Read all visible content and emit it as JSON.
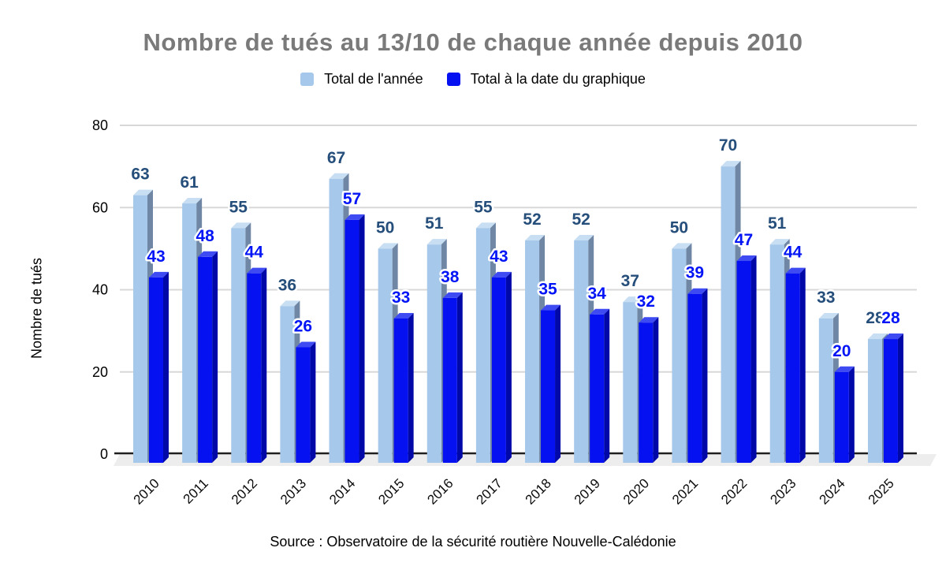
{
  "chart_data": {
    "type": "bar",
    "title": "Nombre de tués au 13/10 de chaque année depuis 2010",
    "xlabel": "",
    "ylabel": "Nombre de tués",
    "ylim": [
      0,
      80
    ],
    "yticks": [
      0,
      20,
      40,
      60,
      80
    ],
    "grid": true,
    "legend_position": "top",
    "style": "3d-bars",
    "categories": [
      "2010",
      "2011",
      "2012",
      "2013",
      "2014",
      "2015",
      "2016",
      "2017",
      "2018",
      "2019",
      "2020",
      "2021",
      "2022",
      "2023",
      "2024",
      "2025"
    ],
    "series": [
      {
        "name": "Total de l'année",
        "color": "#a6c8ea",
        "side_color": "#6f87a5",
        "top_color": "#c8def3",
        "label_color": "#254e7b",
        "values": [
          63,
          61,
          55,
          36,
          67,
          50,
          51,
          55,
          52,
          52,
          37,
          50,
          70,
          51,
          33,
          28
        ]
      },
      {
        "name": "Total à la date du graphique",
        "color": "#0511f0",
        "side_color": "#0009a8",
        "top_color": "#3e4bf2",
        "label_color": "#0014f5",
        "values": [
          43,
          48,
          44,
          26,
          57,
          33,
          38,
          43,
          35,
          34,
          32,
          39,
          47,
          44,
          20,
          28
        ]
      }
    ]
  },
  "source_note": "Source : Observatoire de la sécurité routière Nouvelle-Calédonie",
  "colors": {
    "title": "#7a7a7a",
    "gridline": "#d8d8d8",
    "axis_line": "#1f1f1f",
    "floor": "#ededed",
    "tick_text": "#000000",
    "x_label_text": "#0a0a0a"
  }
}
